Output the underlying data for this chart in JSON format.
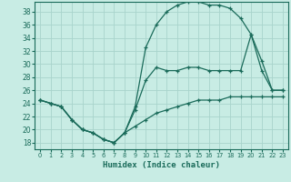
{
  "title": "",
  "xlabel": "Humidex (Indice chaleur)",
  "ylabel": "",
  "bg_color": "#c8ece4",
  "grid_color": "#a8d4cc",
  "line_color": "#1a6b5a",
  "marker": "+",
  "xlim": [
    -0.5,
    23.5
  ],
  "ylim": [
    17,
    39.5
  ],
  "xticks": [
    0,
    1,
    2,
    3,
    4,
    5,
    6,
    7,
    8,
    9,
    10,
    11,
    12,
    13,
    14,
    15,
    16,
    17,
    18,
    19,
    20,
    21,
    22,
    23
  ],
  "yticks": [
    18,
    20,
    22,
    24,
    26,
    28,
    30,
    32,
    34,
    36,
    38
  ],
  "line_top_x": [
    0,
    1,
    2,
    3,
    4,
    5,
    6,
    7,
    8,
    9,
    10,
    11,
    12,
    13,
    14,
    15,
    16,
    17,
    18,
    19,
    20,
    21,
    22,
    23
  ],
  "line_top_y": [
    24.5,
    24.0,
    23.5,
    21.5,
    20.0,
    19.5,
    18.5,
    18.0,
    19.5,
    23.5,
    32.5,
    36.0,
    38.0,
    39.0,
    39.5,
    39.5,
    39.0,
    39.0,
    38.5,
    37.0,
    34.5,
    30.5,
    26.0,
    26.0
  ],
  "line_mid_x": [
    0,
    1,
    2,
    3,
    4,
    5,
    6,
    7,
    8,
    9,
    10,
    11,
    12,
    13,
    14,
    15,
    16,
    17,
    18,
    19,
    20,
    21,
    22,
    23
  ],
  "line_mid_y": [
    24.5,
    24.0,
    23.5,
    21.5,
    20.0,
    19.5,
    18.5,
    18.0,
    19.5,
    23.0,
    27.5,
    29.5,
    29.0,
    29.0,
    29.5,
    29.5,
    29.0,
    29.0,
    29.0,
    29.0,
    34.5,
    29.0,
    26.0,
    26.0
  ],
  "line_bot_x": [
    0,
    1,
    2,
    3,
    4,
    5,
    6,
    7,
    8,
    9,
    10,
    11,
    12,
    13,
    14,
    15,
    16,
    17,
    18,
    19,
    20,
    21,
    22,
    23
  ],
  "line_bot_y": [
    24.5,
    24.0,
    23.5,
    21.5,
    20.0,
    19.5,
    18.5,
    18.0,
    19.5,
    20.5,
    21.5,
    22.5,
    23.0,
    23.5,
    24.0,
    24.5,
    24.5,
    24.5,
    25.0,
    25.0,
    25.0,
    25.0,
    25.0,
    25.0
  ]
}
